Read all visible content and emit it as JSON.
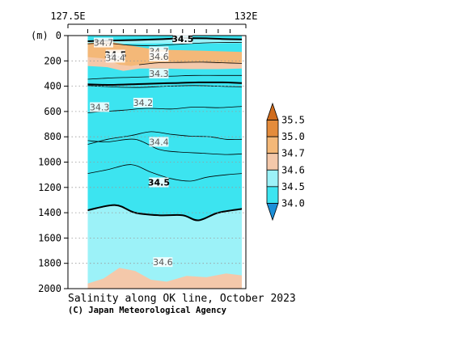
{
  "chart_data": {
    "type": "heatmap",
    "title": "Salinity along OK line, October 2023",
    "credit": "(C) Japan Meteorological Agency",
    "x_axis": {
      "ticks": [
        {
          "value": 127.5,
          "label": "127.5E"
        },
        {
          "value": 132.0,
          "label": "132E"
        }
      ],
      "range": [
        127.5,
        132.0
      ],
      "station_marks": [
        128.0,
        128.3,
        128.6,
        128.9,
        129.2,
        129.5,
        129.8,
        130.1,
        130.4,
        130.7,
        131.0,
        131.3,
        131.6
      ]
    },
    "y_axis": {
      "unit_label": "(m)",
      "range": [
        0,
        2000
      ],
      "inverted": true,
      "ticks": [
        0,
        200,
        400,
        600,
        800,
        1000,
        1200,
        1400,
        1600,
        1800,
        2000
      ],
      "tick_labels": [
        "0",
        "200",
        "400",
        "600",
        "800",
        "1000",
        "1200",
        "1400",
        "1600",
        "1800",
        "2000"
      ],
      "grid": "dotted"
    },
    "data_extent": {
      "lon_min": 128.0,
      "lon_max": 131.9,
      "depth_max": 2000
    },
    "colorbar": {
      "levels": [
        34.0,
        34.5,
        34.6,
        34.7,
        35.0,
        35.5
      ],
      "labels": [
        "34.0",
        "34.5",
        "34.6",
        "34.7",
        "35.0",
        "35.5"
      ],
      "colors": [
        "#1c8fd8",
        "#3ce4f0",
        "#9cf2f8",
        "#f4c8aa",
        "#f4b878",
        "#e48c3c",
        "#d06c1c"
      ]
    },
    "fill_colors": {
      "s34_0_34_5": "#3ce4f0",
      "s34_5_34_6": "#9cf2f8",
      "s34_6_34_7": "#f4c8aa",
      "s34_7_35_0": "#f4b878"
    },
    "contour_labels": [
      {
        "text": "34.5",
        "lon": 130.4,
        "depth": 50,
        "bold": true
      },
      {
        "text": "34.7",
        "lon": 128.4,
        "depth": 110,
        "bold": false
      },
      {
        "text": "34.7",
        "lon": 129.8,
        "depth": 250,
        "bold": false
      },
      {
        "text": "34.5",
        "lon": 128.7,
        "depth": 300,
        "bold": true
      },
      {
        "text": "34.6",
        "lon": 129.8,
        "depth": 330,
        "bold": false
      },
      {
        "text": "34.4",
        "lon": 128.7,
        "depth": 350,
        "bold": false
      },
      {
        "text": "34.3",
        "lon": 129.8,
        "depth": 600,
        "bold": false
      },
      {
        "text": "34.3",
        "lon": 128.3,
        "depth": 1130,
        "bold": false
      },
      {
        "text": "34.2",
        "lon": 129.4,
        "depth": 1060,
        "bold": false
      },
      {
        "text": "34.4",
        "lon": 129.8,
        "depth": 1680,
        "bold": false
      },
      {
        "text": "34.5",
        "lon": 129.8,
        "depth": 2320,
        "bold": true
      },
      {
        "text": "34.6",
        "lon": 129.9,
        "depth": 3580,
        "bold": false
      }
    ],
    "contours": [
      {
        "level": "34.7a",
        "bold": false,
        "points": [
          [
            128.0,
            65
          ],
          [
            128.5,
            60
          ],
          [
            129.0,
            75
          ],
          [
            129.6,
            80
          ],
          [
            130.2,
            70
          ],
          [
            130.8,
            60
          ],
          [
            131.3,
            55
          ],
          [
            131.9,
            55
          ]
        ]
      },
      {
        "level": "34.7b",
        "bold": false,
        "points": [
          [
            129.3,
            230
          ],
          [
            129.8,
            215
          ],
          [
            130.3,
            212
          ],
          [
            130.9,
            210
          ],
          [
            131.4,
            215
          ],
          [
            131.9,
            220
          ]
        ]
      },
      {
        "level": "34.5a",
        "bold": true,
        "points": [
          [
            128.0,
            45
          ],
          [
            128.5,
            40
          ],
          [
            129.2,
            35
          ],
          [
            129.9,
            28
          ],
          [
            130.4,
            20
          ],
          [
            131.0,
            22
          ],
          [
            131.5,
            28
          ],
          [
            131.9,
            30
          ]
        ]
      },
      {
        "level": "34.6",
        "bold": false,
        "points": [
          [
            128.0,
            345
          ],
          [
            128.6,
            335
          ],
          [
            129.1,
            330
          ],
          [
            129.6,
            325
          ],
          [
            130.2,
            320
          ],
          [
            130.7,
            315
          ],
          [
            131.3,
            315
          ],
          [
            131.9,
            315
          ]
        ]
      },
      {
        "level": "34.5b",
        "bold": true,
        "points": [
          [
            128.0,
            385
          ],
          [
            128.5,
            390
          ],
          [
            129.1,
            385
          ],
          [
            129.6,
            380
          ],
          [
            130.2,
            375
          ],
          [
            130.8,
            370
          ],
          [
            131.4,
            370
          ],
          [
            131.9,
            375
          ]
        ]
      },
      {
        "level": "34.4",
        "bold": false,
        "points": [
          [
            128.0,
            395
          ],
          [
            128.6,
            405
          ],
          [
            129.3,
            410
          ],
          [
            130.0,
            400
          ],
          [
            130.7,
            395
          ],
          [
            131.3,
            400
          ],
          [
            131.9,
            405
          ]
        ]
      },
      {
        "level": "34.3a",
        "bold": false,
        "points": [
          [
            128.0,
            610
          ],
          [
            128.4,
            600
          ],
          [
            128.9,
            590
          ],
          [
            129.5,
            575
          ],
          [
            130.1,
            580
          ],
          [
            130.7,
            565
          ],
          [
            131.3,
            570
          ],
          [
            131.9,
            560
          ]
        ]
      },
      {
        "level": "34.2",
        "bold": false,
        "points": [
          [
            128.0,
            860
          ],
          [
            128.5,
            820
          ],
          [
            129.1,
            790
          ],
          [
            129.6,
            760
          ],
          [
            130.1,
            780
          ],
          [
            130.6,
            795
          ],
          [
            131.1,
            800
          ],
          [
            131.5,
            820
          ],
          [
            131.9,
            820
          ]
        ]
      },
      {
        "level": "34.3b",
        "bold": false,
        "points": [
          [
            128.0,
            830
          ],
          [
            128.5,
            840
          ],
          [
            129.2,
            820
          ],
          [
            129.8,
            900
          ],
          [
            130.3,
            920
          ],
          [
            130.9,
            930
          ],
          [
            131.5,
            940
          ],
          [
            131.9,
            935
          ]
        ]
      },
      {
        "level": "34.4b",
        "bold": false,
        "points": [
          [
            128.0,
            1090
          ],
          [
            128.5,
            1060
          ],
          [
            129.1,
            1020
          ],
          [
            129.6,
            1080
          ],
          [
            130.1,
            1130
          ],
          [
            130.6,
            1150
          ],
          [
            131.0,
            1120
          ],
          [
            131.5,
            1100
          ],
          [
            131.9,
            1090
          ]
        ]
      },
      {
        "level": "34.5c",
        "bold": true,
        "points": [
          [
            128.0,
            1380
          ],
          [
            128.7,
            1340
          ],
          [
            129.2,
            1400
          ],
          [
            129.8,
            1420
          ],
          [
            130.4,
            1420
          ],
          [
            130.8,
            1460
          ],
          [
            131.3,
            1400
          ],
          [
            131.9,
            1370
          ]
        ]
      }
    ],
    "high_salinity_regions": [
      {
        "range": "34.6-34.7",
        "points": [
          [
            128.0,
            130
          ],
          [
            128.6,
            150
          ],
          [
            129.3,
            170
          ],
          [
            130.0,
            190
          ],
          [
            130.7,
            200
          ],
          [
            131.3,
            205
          ],
          [
            131.9,
            210
          ],
          [
            131.9,
            260
          ],
          [
            131.3,
            265
          ],
          [
            130.6,
            265
          ],
          [
            129.9,
            260
          ],
          [
            129.3,
            260
          ],
          [
            128.9,
            280
          ],
          [
            128.5,
            250
          ],
          [
            128.0,
            240
          ]
        ]
      },
      {
        "range": "34.7-35.0",
        "points": [
          [
            128.0,
            60
          ],
          [
            128.5,
            45
          ],
          [
            129.1,
            80
          ],
          [
            129.7,
            110
          ],
          [
            130.3,
            115
          ],
          [
            130.9,
            120
          ],
          [
            131.5,
            125
          ],
          [
            131.9,
            130
          ],
          [
            131.9,
            215
          ],
          [
            131.3,
            212
          ],
          [
            130.7,
            210
          ],
          [
            130.1,
            210
          ],
          [
            129.5,
            220
          ],
          [
            129.1,
            240
          ],
          [
            128.8,
            230
          ],
          [
            128.4,
            180
          ],
          [
            128.0,
            170
          ]
        ]
      },
      {
        "range": "34.6-34.7",
        "points": [
          [
            128.0,
            1960
          ],
          [
            128.4,
            1920
          ],
          [
            128.8,
            1835
          ],
          [
            129.2,
            1860
          ],
          [
            129.6,
            1930
          ],
          [
            130.0,
            1945
          ],
          [
            130.5,
            1900
          ],
          [
            131.0,
            1910
          ],
          [
            131.5,
            1880
          ],
          [
            131.9,
            1895
          ],
          [
            131.9,
            2000
          ],
          [
            128.0,
            2000
          ]
        ]
      }
    ]
  }
}
